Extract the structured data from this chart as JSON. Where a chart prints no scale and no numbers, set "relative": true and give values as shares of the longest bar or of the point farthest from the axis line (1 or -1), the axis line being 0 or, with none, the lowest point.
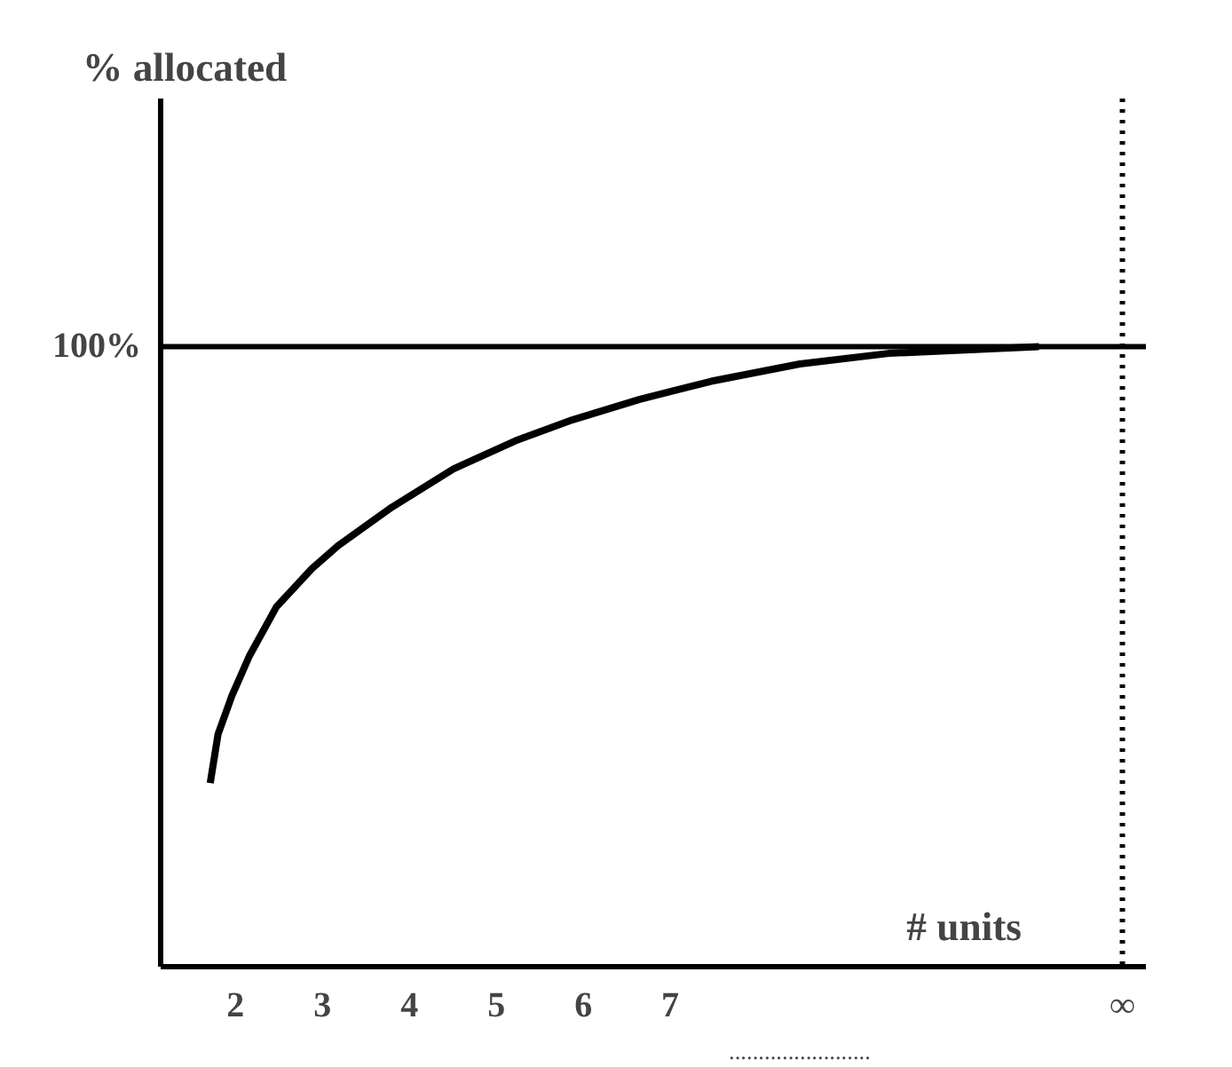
{
  "chart_data": {
    "type": "line",
    "relative": true,
    "xlabel": "# units",
    "x": [
      1.71,
      1.8,
      1.96,
      2.16,
      2.47,
      2.88,
      3.18,
      3.8,
      4.51,
      5.22,
      5.88,
      6.65,
      7.47,
      8.49,
      9.51,
      11.24
    ],
    "series": [
      {
        "color": "#000000",
        "values": [
          0.296,
          0.375,
          0.437,
          0.501,
          0.58,
          0.642,
          0.679,
          0.741,
          0.803,
          0.848,
          0.882,
          0.915,
          0.944,
          0.972,
          0.989,
          1.0
        ]
      }
    ],
    "xlim": [
      1.14,
      12.47
    ],
    "xticks": [
      2,
      3,
      4,
      5,
      6,
      7,
      {
        "value": 12.2,
        "label": "∞"
      }
    ],
    "tick_labels": "x",
    "grid": false,
    "marker": "none",
    "line_style": "solid",
    "ref_lines": [
      {
        "axis": "y",
        "value": 1,
        "label": "100%",
        "color": "#000000",
        "line_style": "solid"
      },
      {
        "axis": "x",
        "value": 12.2,
        "label": null,
        "color": "#000000",
        "line_style": "dotted"
      }
    ],
    "annotations": [
      "% allocated",
      "........................"
    ]
  }
}
